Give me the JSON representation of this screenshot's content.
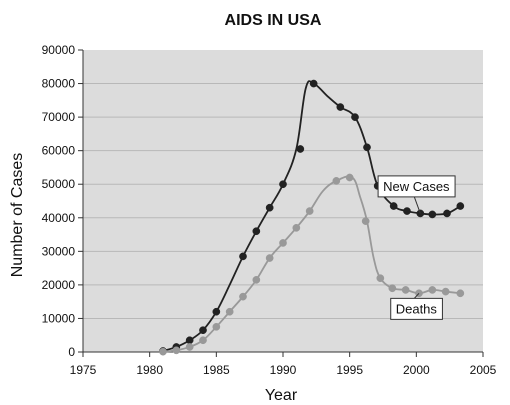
{
  "chart_data": {
    "type": "line",
    "title": "AIDS IN USA",
    "xlabel": "Year",
    "ylabel": "Number of Cases",
    "xlim": [
      1975,
      2005
    ],
    "ylim": [
      0,
      90000
    ],
    "x_ticks": [
      "1975",
      "1980",
      "1985",
      "1990",
      "1995",
      "2000",
      "2005"
    ],
    "y_ticks": [
      "0",
      "10000",
      "20000",
      "30000",
      "40000",
      "50000",
      "60000",
      "70000",
      "80000",
      "90000"
    ],
    "grid": true,
    "series": [
      {
        "name": "New Cases",
        "color": "#222222",
        "points": [
          [
            1981,
            300
          ],
          [
            1982,
            1500
          ],
          [
            1983,
            3500
          ],
          [
            1984,
            6500
          ],
          [
            1985,
            12000
          ],
          [
            1986,
            20000
          ],
          [
            1987,
            28500
          ],
          [
            1988,
            36000
          ],
          [
            1989,
            43000
          ],
          [
            1990,
            50000
          ],
          [
            1991,
            60500
          ],
          [
            1991.7,
            78500
          ],
          [
            1992.3,
            80000
          ],
          [
            1993.4,
            76000
          ],
          [
            1994.3,
            73000
          ],
          [
            1995.4,
            70000
          ],
          [
            1996.3,
            61000
          ],
          [
            1997.1,
            49500
          ],
          [
            1998.3,
            43500
          ],
          [
            1999.3,
            42000
          ],
          [
            2000.3,
            41300
          ],
          [
            2001.2,
            41000
          ],
          [
            2002.3,
            41300
          ],
          [
            2003.3,
            43500
          ]
        ],
        "markers": [
          [
            1981,
            300
          ],
          [
            1982,
            1500
          ],
          [
            1983,
            3500
          ],
          [
            1984,
            6500
          ],
          [
            1985,
            12000
          ],
          [
            1987,
            28500
          ],
          [
            1988,
            36000
          ],
          [
            1989,
            43000
          ],
          [
            1990,
            50000
          ],
          [
            1991.3,
            60500
          ],
          [
            1992.3,
            80000
          ],
          [
            1994.3,
            73000
          ],
          [
            1995.4,
            70000
          ],
          [
            1996.3,
            61000
          ],
          [
            1997.1,
            49500
          ],
          [
            1998.3,
            43500
          ],
          [
            1999.3,
            42000
          ],
          [
            2000.3,
            41300
          ],
          [
            2001.2,
            41000
          ],
          [
            2002.3,
            41300
          ],
          [
            2003.3,
            43500
          ]
        ]
      },
      {
        "name": "Deaths",
        "color": "#999999",
        "points": [
          [
            1981,
            100
          ],
          [
            1982,
            500
          ],
          [
            1983,
            1500
          ],
          [
            1984,
            3500
          ],
          [
            1985,
            7500
          ],
          [
            1986,
            12000
          ],
          [
            1987,
            16500
          ],
          [
            1988,
            21500
          ],
          [
            1989,
            28000
          ],
          [
            1990,
            32500
          ],
          [
            1991,
            37000
          ],
          [
            1992,
            42000
          ],
          [
            1993,
            48000
          ],
          [
            1994,
            51000
          ],
          [
            1995.2,
            52000
          ],
          [
            1995.8,
            46000
          ],
          [
            1996.3,
            39000
          ],
          [
            1996.8,
            28000
          ],
          [
            1997.3,
            22000
          ],
          [
            1998.2,
            19000
          ],
          [
            1999.2,
            18500
          ],
          [
            2000.2,
            17500
          ],
          [
            2001.2,
            18500
          ],
          [
            2002.2,
            18000
          ],
          [
            2003.3,
            17500
          ]
        ],
        "markers": [
          [
            1981,
            100
          ],
          [
            1982,
            500
          ],
          [
            1983,
            1500
          ],
          [
            1984,
            3500
          ],
          [
            1985,
            7500
          ],
          [
            1986,
            12000
          ],
          [
            1987,
            16500
          ],
          [
            1988,
            21500
          ],
          [
            1989,
            28000
          ],
          [
            1990,
            32500
          ],
          [
            1991,
            37000
          ],
          [
            1992,
            42000
          ],
          [
            1994,
            51000
          ],
          [
            1995,
            52000
          ],
          [
            1996.2,
            39000
          ],
          [
            1997.3,
            22000
          ],
          [
            1998.2,
            19000
          ],
          [
            1999.2,
            18500
          ],
          [
            2000.2,
            17500
          ],
          [
            2001.2,
            18500
          ],
          [
            2002.2,
            18000
          ],
          [
            2003.3,
            17500
          ]
        ]
      }
    ],
    "labels": [
      {
        "text": "New Cases",
        "series": "New Cases",
        "x": 2000,
        "y": 49500
      },
      {
        "text": "Deaths",
        "series": "Deaths",
        "x": 2000,
        "y": 13000
      }
    ]
  },
  "colors": {
    "plot_background": "#dcdcdc",
    "grid": "#b8b8b8",
    "axis": "#333333"
  }
}
